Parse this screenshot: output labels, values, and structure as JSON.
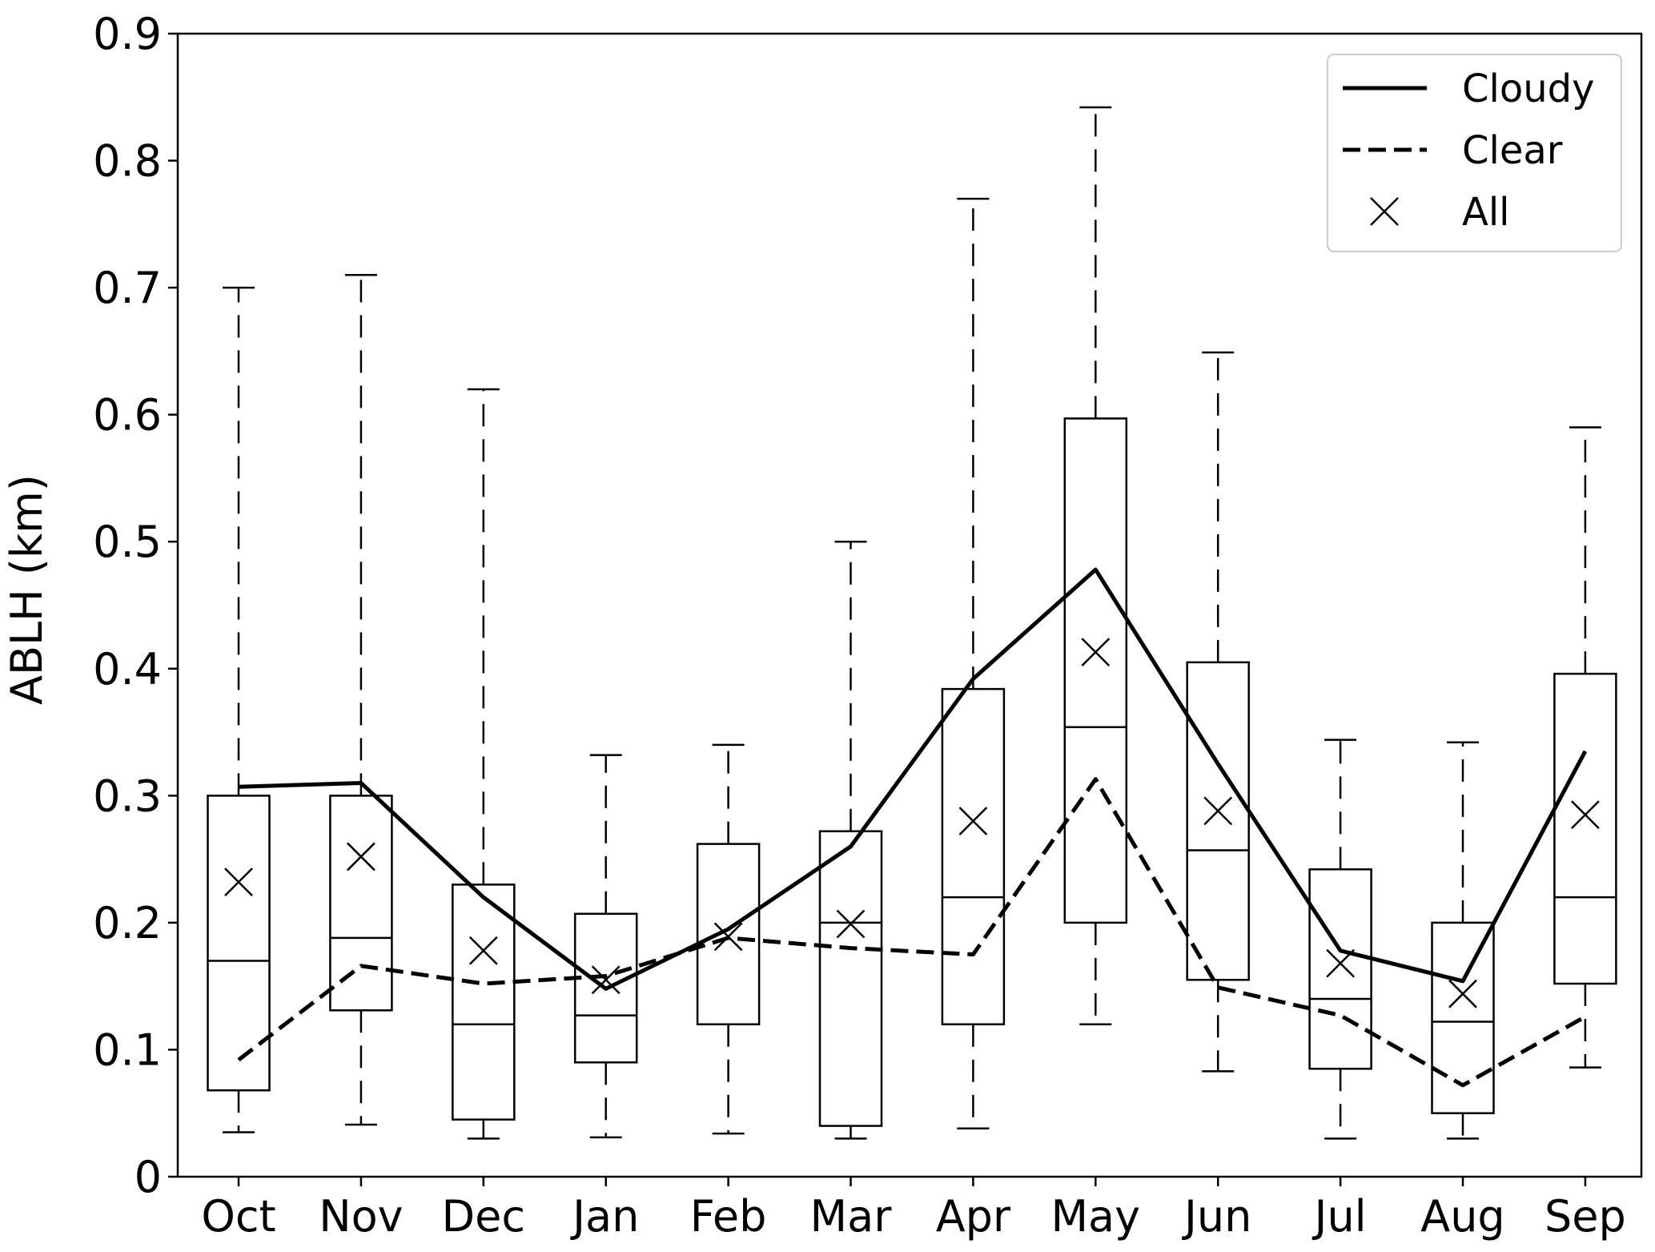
{
  "chart_data": {
    "type": "box",
    "ylabel": "ABLH (km)",
    "xlabel": "",
    "title": "",
    "ylim": [
      0,
      0.9
    ],
    "yticks": [
      0,
      0.1,
      0.2,
      0.3,
      0.4,
      0.5,
      0.6,
      0.7,
      0.8,
      0.9
    ],
    "ytick_labels": [
      "0",
      "0.1",
      "0.2",
      "0.3",
      "0.4",
      "0.5",
      "0.6",
      "0.7",
      "0.8",
      "0.9"
    ],
    "categories": [
      "Oct",
      "Nov",
      "Dec",
      "Jan",
      "Feb",
      "Mar",
      "Apr",
      "May",
      "Jun",
      "Jul",
      "Aug",
      "Sep"
    ],
    "boxes": [
      {
        "whislo": 0.035,
        "q1": 0.068,
        "med": 0.17,
        "q3": 0.3,
        "whishi": 0.7
      },
      {
        "whislo": 0.041,
        "q1": 0.131,
        "med": 0.188,
        "q3": 0.3,
        "whishi": 0.71
      },
      {
        "whislo": 0.03,
        "q1": 0.045,
        "med": 0.12,
        "q3": 0.23,
        "whishi": 0.62
      },
      {
        "whislo": 0.031,
        "q1": 0.09,
        "med": 0.127,
        "q3": 0.207,
        "whishi": 0.332
      },
      {
        "whislo": 0.034,
        "q1": 0.12,
        "med": 0.12,
        "q3": 0.262,
        "whishi": 0.34
      },
      {
        "whislo": 0.03,
        "q1": 0.04,
        "med": 0.2,
        "q3": 0.272,
        "whishi": 0.5
      },
      {
        "whislo": 0.038,
        "q1": 0.12,
        "med": 0.22,
        "q3": 0.384,
        "whishi": 0.77
      },
      {
        "whislo": 0.12,
        "q1": 0.2,
        "med": 0.354,
        "q3": 0.597,
        "whishi": 0.842
      },
      {
        "whislo": 0.083,
        "q1": 0.155,
        "med": 0.257,
        "q3": 0.405,
        "whishi": 0.649
      },
      {
        "whislo": 0.03,
        "q1": 0.085,
        "med": 0.14,
        "q3": 0.242,
        "whishi": 0.344
      },
      {
        "whislo": 0.03,
        "q1": 0.05,
        "med": 0.122,
        "q3": 0.2,
        "whishi": 0.342
      },
      {
        "whislo": 0.086,
        "q1": 0.152,
        "med": 0.22,
        "q3": 0.396,
        "whishi": 0.59
      }
    ],
    "series": [
      {
        "name": "Cloudy",
        "style": "solid",
        "values": [
          0.307,
          0.31,
          0.22,
          0.148,
          0.195,
          0.26,
          0.392,
          0.478,
          0.325,
          0.178,
          0.154,
          0.335
        ]
      },
      {
        "name": "Clear",
        "style": "dashed",
        "values": [
          0.092,
          0.166,
          0.152,
          0.158,
          0.188,
          0.18,
          0.175,
          0.313,
          0.149,
          0.127,
          0.072,
          0.126
        ]
      },
      {
        "name": "All",
        "style": "x-marker",
        "values": [
          0.232,
          0.252,
          0.178,
          0.155,
          0.189,
          0.199,
          0.28,
          0.413,
          0.288,
          0.168,
          0.144,
          0.285
        ]
      }
    ],
    "legend": {
      "position": "top-right",
      "entries": [
        "Cloudy",
        "Clear",
        "All"
      ]
    },
    "grid": false,
    "colors": {
      "line": "#000000",
      "background": "#ffffff"
    }
  }
}
